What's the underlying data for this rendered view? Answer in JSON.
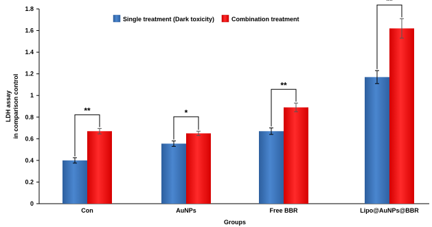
{
  "chart_data": {
    "type": "bar",
    "xlabel": "Groups",
    "ylabel_lines": [
      "LDH assay",
      "in comparison control"
    ],
    "ylim": [
      0,
      1.8
    ],
    "ytick_step": 0.2,
    "ytick_labels": [
      "0",
      "0.2",
      "0.4",
      "0.6",
      "0.8",
      "1",
      "1.2",
      "1.4",
      "1.6",
      "1.8"
    ],
    "grid": false,
    "legend_position": "top-center",
    "categories": [
      "Con",
      "AuNPs",
      "Free BBR",
      "Lipo@AuNPs@BBR"
    ],
    "series": [
      {
        "name": "Single treatment (Dark toxicity)",
        "color": "#3f7bc4",
        "values": [
          0.4,
          0.555,
          0.67,
          1.17
        ],
        "errors": [
          0.025,
          0.025,
          0.03,
          0.06
        ]
      },
      {
        "name": "Combination treatment",
        "color": "#ff1f1f",
        "values": [
          0.67,
          0.65,
          0.89,
          1.62
        ],
        "errors": [
          0.025,
          0.02,
          0.04,
          0.09
        ]
      }
    ],
    "significance": [
      "**",
      "*",
      "**",
      "**"
    ]
  }
}
